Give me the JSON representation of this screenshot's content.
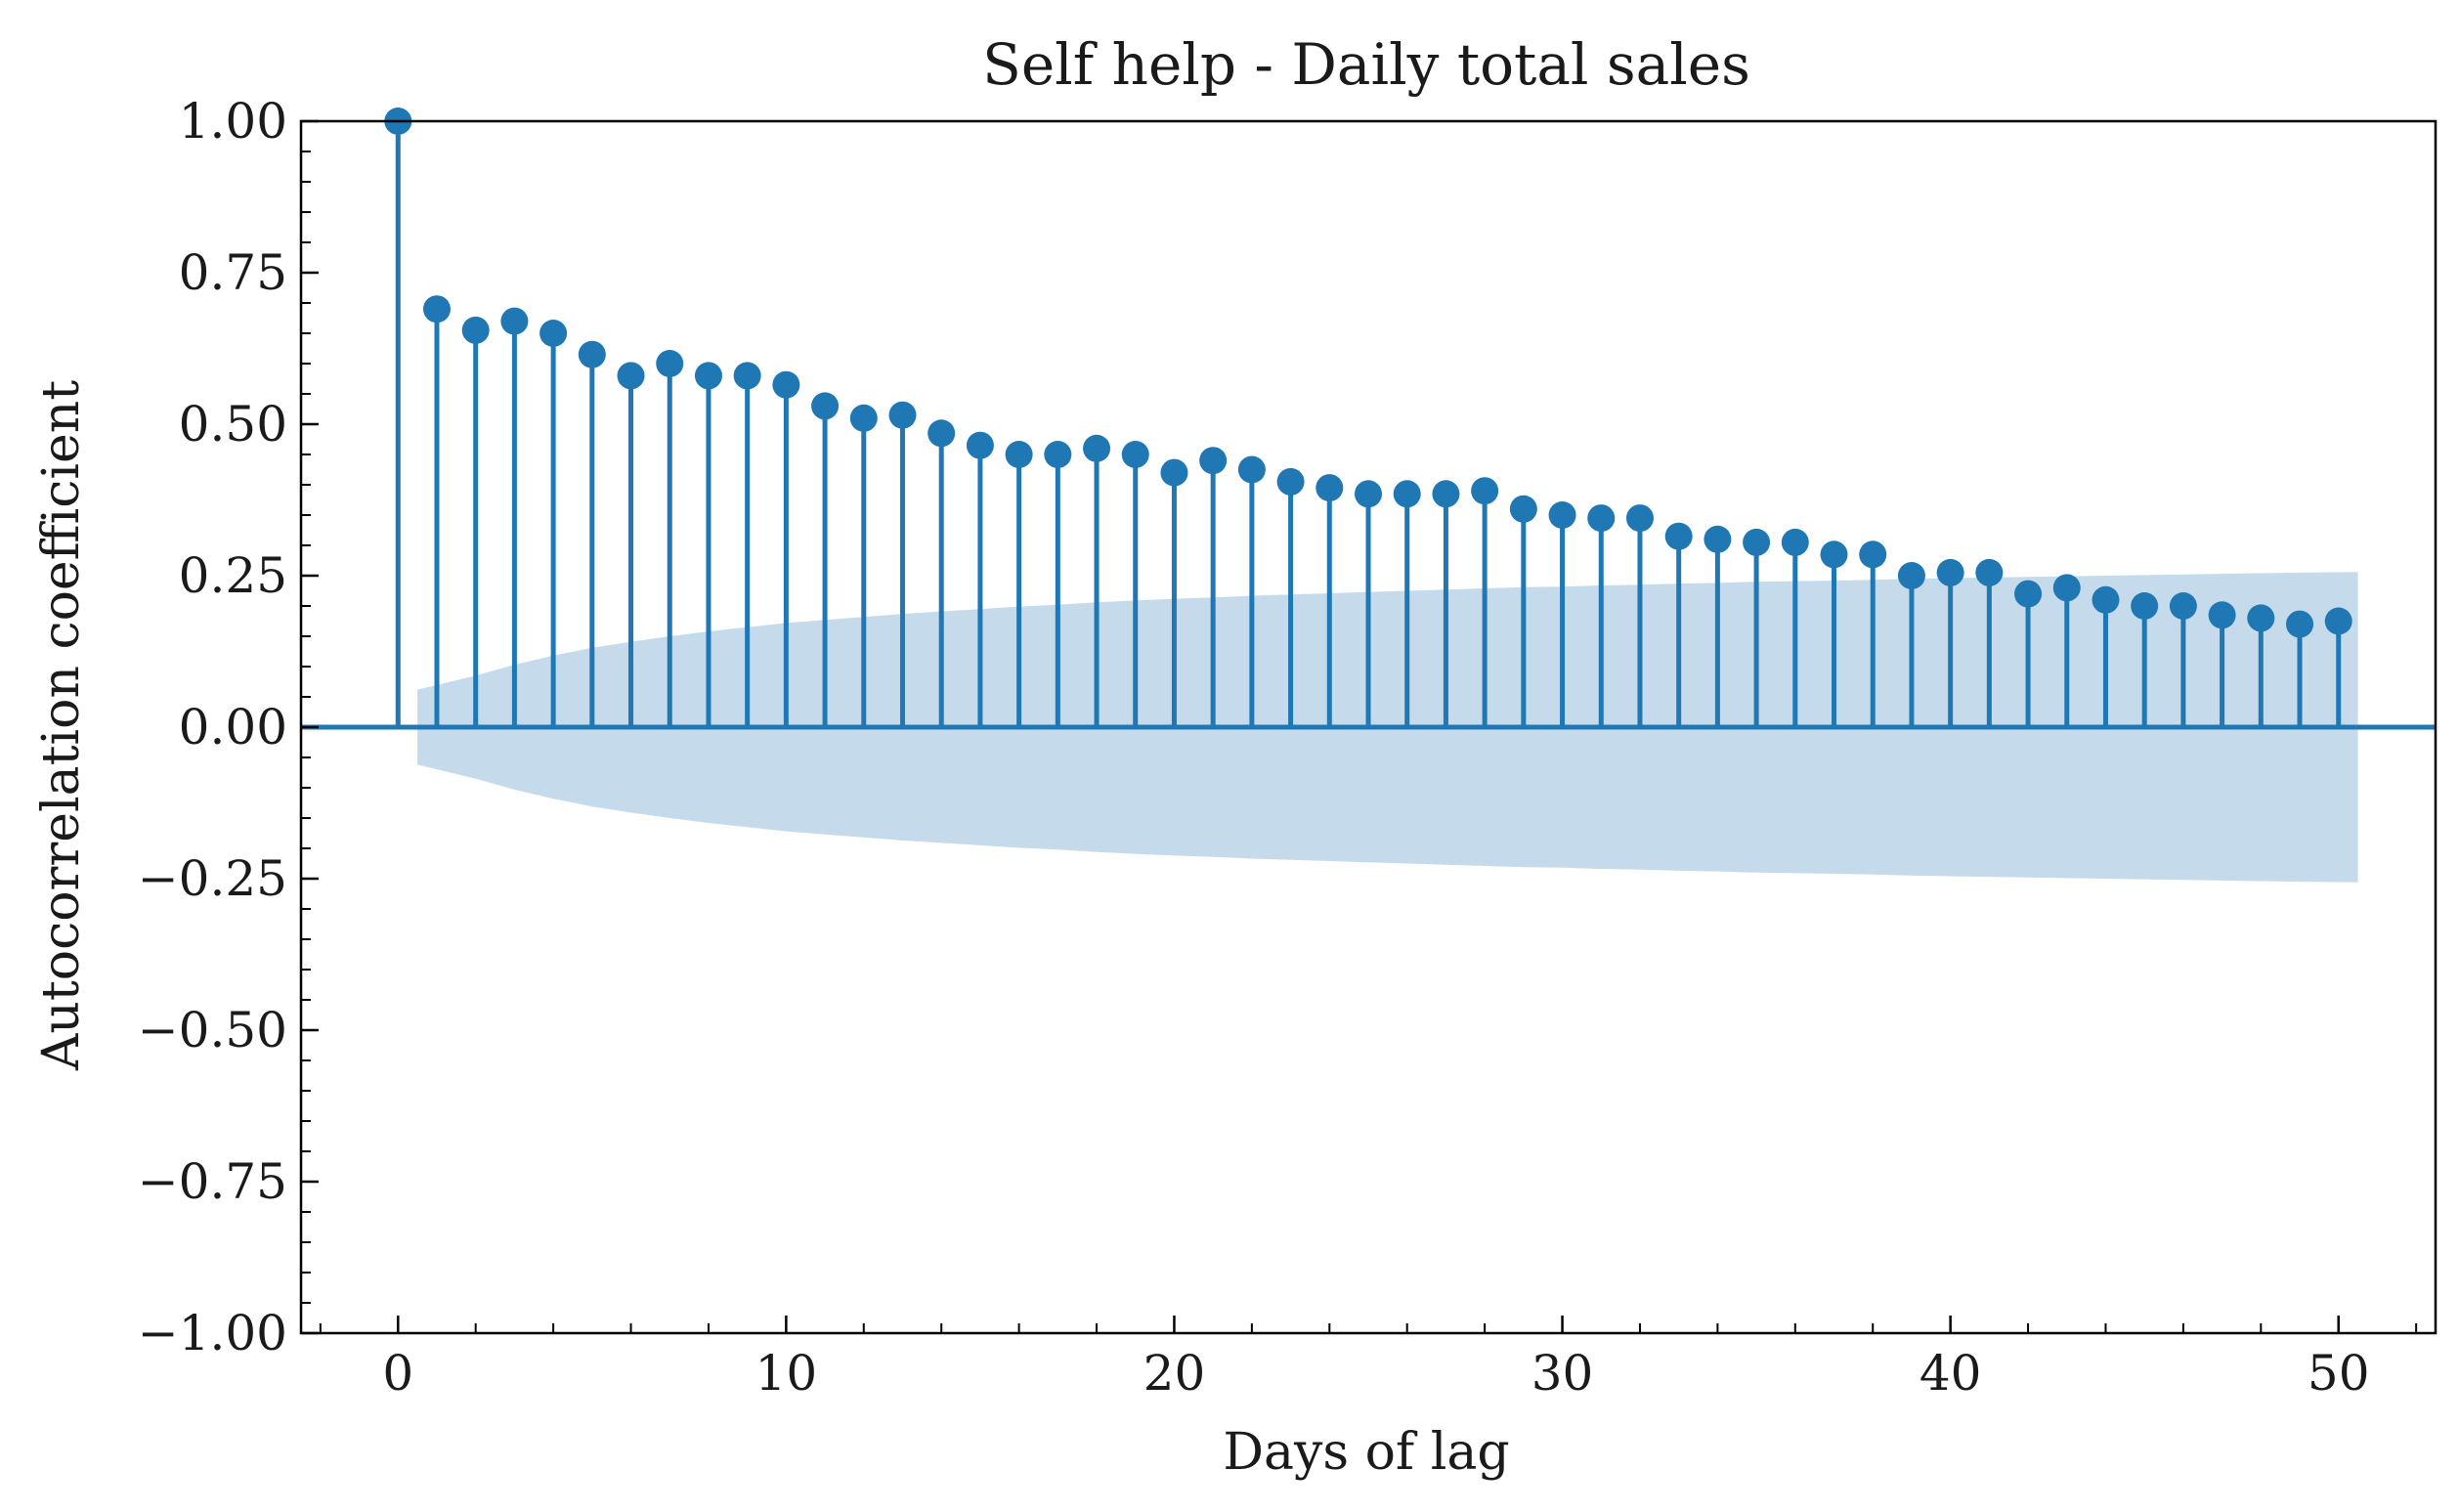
{
  "chart_data": {
    "type": "stem",
    "title": "Self help - Daily total sales",
    "xlabel": "Days of lag",
    "ylabel": "Autocorrelation coefficient",
    "xlim": [
      -2.5,
      52.5
    ],
    "ylim": [
      -1.0,
      1.0
    ],
    "x_ticks": [
      0,
      10,
      20,
      30,
      40,
      50
    ],
    "x_tick_labels": [
      "0",
      "10",
      "20",
      "30",
      "40",
      "50"
    ],
    "y_ticks": [
      1.0,
      0.75,
      0.5,
      0.25,
      0.0,
      -0.25,
      -0.5,
      -0.75,
      -1.0
    ],
    "y_tick_labels": [
      "1.00",
      "0.75",
      "0.50",
      "0.25",
      "0.00",
      "−0.25",
      "−0.50",
      "−0.75",
      "−1.00"
    ],
    "grid": false,
    "colors": {
      "stem": "#1f77b4",
      "confidence_band": "#c5dbec",
      "axis": "#000000"
    },
    "series": [
      {
        "lags": [
          0,
          1,
          2,
          3,
          4,
          5,
          6,
          7,
          8,
          9,
          10,
          11,
          12,
          13,
          14,
          15,
          16,
          17,
          18,
          19,
          20,
          21,
          22,
          23,
          24,
          25,
          26,
          27,
          28,
          29,
          30,
          31,
          32,
          33,
          34,
          35,
          36,
          37,
          38,
          39,
          40,
          41,
          42,
          43,
          44,
          45,
          46,
          47,
          48,
          49,
          50
        ],
        "values": [
          1.0,
          0.69,
          0.655,
          0.67,
          0.65,
          0.615,
          0.58,
          0.6,
          0.58,
          0.58,
          0.565,
          0.53,
          0.51,
          0.515,
          0.485,
          0.465,
          0.45,
          0.45,
          0.46,
          0.45,
          0.42,
          0.44,
          0.425,
          0.405,
          0.395,
          0.385,
          0.385,
          0.385,
          0.39,
          0.36,
          0.35,
          0.345,
          0.345,
          0.315,
          0.31,
          0.305,
          0.305,
          0.285,
          0.285,
          0.25,
          0.255,
          0.255,
          0.22,
          0.23,
          0.21,
          0.2,
          0.2,
          0.185,
          0.18,
          0.17,
          0.175
        ]
      }
    ],
    "confidence_band": {
      "x_start": 0.5,
      "x_end": 50.5,
      "lags": [
        1,
        2,
        3,
        4,
        5,
        6,
        7,
        8,
        9,
        10,
        11,
        12,
        13,
        14,
        15,
        16,
        17,
        18,
        19,
        20,
        21,
        22,
        23,
        24,
        25,
        26,
        27,
        28,
        29,
        30,
        31,
        32,
        33,
        34,
        35,
        36,
        37,
        38,
        39,
        40,
        41,
        42,
        43,
        44,
        45,
        46,
        47,
        48,
        49,
        50
      ],
      "upper": [
        0.062,
        0.085,
        0.103,
        0.118,
        0.131,
        0.141,
        0.15,
        0.158,
        0.165,
        0.172,
        0.177,
        0.182,
        0.187,
        0.191,
        0.195,
        0.199,
        0.202,
        0.206,
        0.209,
        0.212,
        0.214,
        0.217,
        0.219,
        0.221,
        0.223,
        0.225,
        0.227,
        0.229,
        0.231,
        0.232,
        0.234,
        0.235,
        0.237,
        0.238,
        0.24,
        0.241,
        0.242,
        0.243,
        0.245,
        0.246,
        0.247,
        0.248,
        0.249,
        0.25,
        0.251,
        0.252,
        0.253,
        0.254,
        0.255,
        0.256
      ]
    }
  }
}
